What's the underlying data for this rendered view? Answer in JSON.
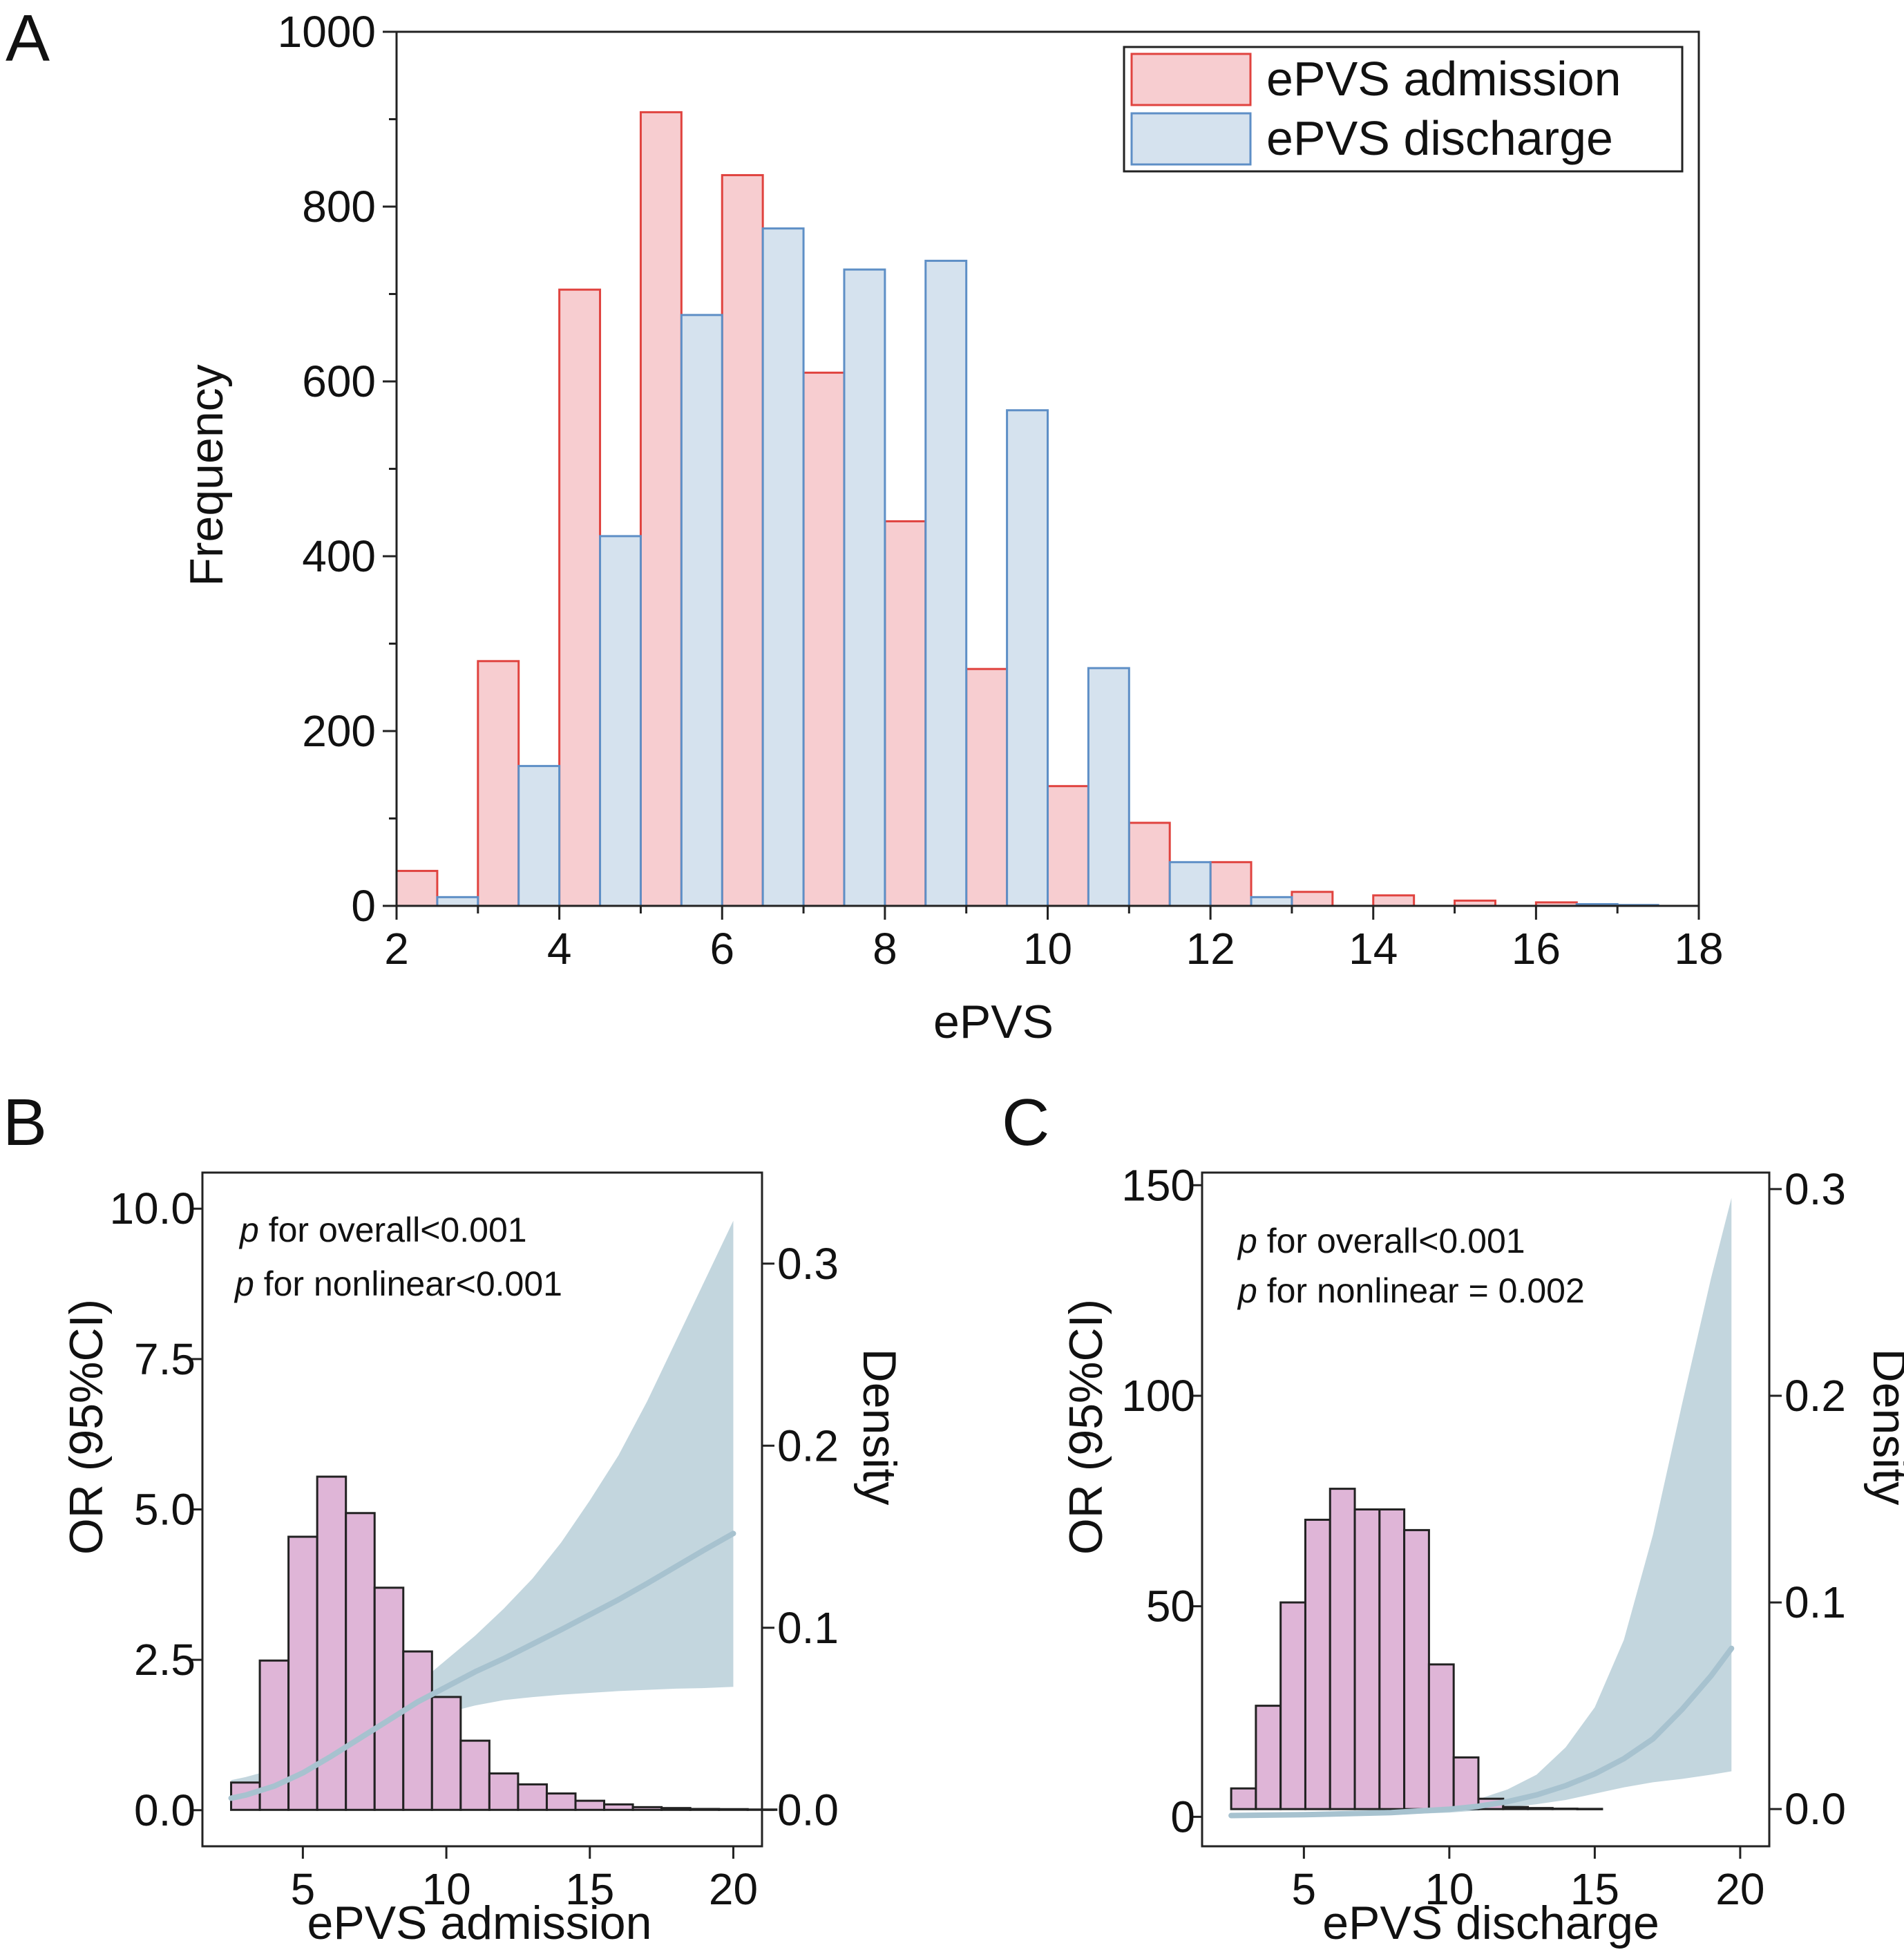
{
  "colors": {
    "admission_fill": "#f7cdd0",
    "admission_stroke": "#e0433f",
    "discharge_fill": "#d5e2ee",
    "discharge_stroke": "#5e8fc6",
    "density_fill": "#dfb5d7",
    "density_stroke": "#222222",
    "curve": "#a7c2cf",
    "band": "#b8cfd8"
  },
  "chart_data": [
    {
      "panel": "A",
      "type": "bar",
      "xlabel": "ePVS",
      "ylabel": "Frequency",
      "xlim": [
        2,
        18
      ],
      "ylim": [
        0,
        1000
      ],
      "xticks": [
        "2",
        "4",
        "6",
        "8",
        "10",
        "12",
        "14",
        "16",
        "18"
      ],
      "yticks": [
        "0",
        "200",
        "400",
        "600",
        "800",
        "1000"
      ],
      "legend": [
        "ePVS admission",
        "ePVS discharge"
      ],
      "legend_position": "top-right",
      "series": [
        {
          "name": "ePVS admission",
          "bins": [
            [
              2,
              2.5,
              40
            ],
            [
              3,
              3.5,
              280
            ],
            [
              4,
              4.5,
              705
            ],
            [
              5,
              5.5,
              908
            ],
            [
              6,
              6.5,
              836
            ],
            [
              7,
              7.5,
              610
            ],
            [
              8,
              8.5,
              440
            ],
            [
              9,
              9.5,
              271
            ],
            [
              10,
              10.5,
              137
            ],
            [
              11,
              11.5,
              95
            ],
            [
              12,
              12.5,
              50
            ],
            [
              13,
              13.5,
              16
            ],
            [
              14,
              14.5,
              12
            ],
            [
              15,
              15.5,
              6
            ],
            [
              16,
              16.5,
              4
            ]
          ]
        },
        {
          "name": "ePVS discharge",
          "bins": [
            [
              2.5,
              3,
              10
            ],
            [
              3.5,
              4,
              160
            ],
            [
              4.5,
              5,
              423
            ],
            [
              5.5,
              6,
              676
            ],
            [
              6.5,
              7,
              775
            ],
            [
              7.5,
              8,
              728
            ],
            [
              8.5,
              9,
              738
            ],
            [
              9.5,
              10,
              567
            ],
            [
              10.5,
              11,
              272
            ],
            [
              11.5,
              12,
              50
            ],
            [
              12.5,
              13,
              10
            ],
            [
              16.5,
              17,
              2
            ],
            [
              17,
              17.5,
              1
            ]
          ]
        }
      ]
    },
    {
      "panel": "B",
      "type": "line",
      "xlabel": "ePVS admission",
      "ylabel": "OR (95%CI)",
      "y2label": "Density",
      "xlim": [
        1.5,
        21
      ],
      "ylim": [
        -0.6,
        10.6
      ],
      "y2lim": [
        -0.02,
        0.35
      ],
      "xticks": [
        5,
        10,
        15,
        20
      ],
      "yticks": [
        "0.0",
        "2.5",
        "5.0",
        "7.5",
        "10.0"
      ],
      "y2ticks": [
        "0.0",
        "0.1",
        "0.2",
        "0.3"
      ],
      "annotations": [
        {
          "italic": "p",
          "text": " for overall<0.001"
        },
        {
          "italic": "p",
          "text": " for nonlinear<0.001"
        }
      ],
      "density_hist": {
        "start": 2.5,
        "width": 1,
        "values": [
          0.015,
          0.082,
          0.15,
          0.183,
          0.163,
          0.122,
          0.087,
          0.062,
          0.038,
          0.02,
          0.014,
          0.009,
          0.005,
          0.003,
          0.0015,
          0.001,
          0.0005,
          0.0004,
          0.0002
        ]
      },
      "or_curve": {
        "x": [
          2.5,
          3,
          4,
          5,
          6,
          7,
          8,
          9,
          10,
          11,
          12,
          13,
          14,
          15,
          16,
          17,
          18,
          19,
          20
        ],
        "y": [
          0.2,
          0.25,
          0.4,
          0.62,
          0.9,
          1.2,
          1.5,
          1.8,
          2.05,
          2.3,
          2.52,
          2.76,
          3.0,
          3.25,
          3.5,
          3.77,
          4.05,
          4.33,
          4.6
        ],
        "lower": [
          0.05,
          0.1,
          0.22,
          0.42,
          0.68,
          0.98,
          1.22,
          1.45,
          1.62,
          1.74,
          1.83,
          1.88,
          1.92,
          1.95,
          1.98,
          2.0,
          2.02,
          2.03,
          2.05
        ],
        "upper": [
          0.5,
          0.55,
          0.68,
          0.9,
          1.15,
          1.45,
          1.75,
          2.1,
          2.5,
          2.9,
          3.35,
          3.85,
          4.45,
          5.15,
          5.9,
          6.8,
          7.8,
          8.8,
          9.8
        ]
      }
    },
    {
      "panel": "C",
      "type": "line",
      "xlabel": "ePVS discharge",
      "ylabel": "OR (95%CI)",
      "y2label": "Density",
      "xlim": [
        1.5,
        21
      ],
      "ylim": [
        -7,
        153
      ],
      "y2lim": [
        -0.018,
        0.308
      ],
      "xticks": [
        5,
        10,
        15,
        20
      ],
      "yticks": [
        "0",
        "50",
        "100",
        "150"
      ],
      "y2ticks": [
        "0.0",
        "0.1",
        "0.2",
        "0.3"
      ],
      "annotations": [
        {
          "italic": "p",
          "text": " for overall<0.001"
        },
        {
          "italic": "p",
          "text": " for nonlinear = 0.002"
        }
      ],
      "density_hist": {
        "start": 2.5,
        "width": 0.85,
        "values": [
          0.01,
          0.05,
          0.1,
          0.14,
          0.155,
          0.145,
          0.145,
          0.135,
          0.07,
          0.025,
          0.005,
          0.001,
          0.0005,
          0.0002,
          0.0001
        ]
      },
      "or_curve": {
        "x": [
          2.5,
          5,
          8,
          10,
          11,
          12,
          13,
          14,
          15,
          16,
          17,
          18,
          19,
          19.7
        ],
        "y": [
          0.3,
          0.5,
          1.0,
          1.8,
          2.5,
          3.6,
          5.2,
          7.4,
          10.2,
          13.8,
          18.5,
          25.5,
          33.5,
          40.0
        ],
        "lower": [
          0.05,
          0.2,
          0.5,
          1.0,
          1.5,
          2.2,
          3.0,
          4.0,
          5.5,
          7.0,
          8.2,
          9.0,
          10.0,
          10.8
        ],
        "upper": [
          0.5,
          0.9,
          1.6,
          2.8,
          4.2,
          6.5,
          10.0,
          16.5,
          26.0,
          42.0,
          67.0,
          98.0,
          128.0,
          147.0
        ]
      }
    }
  ]
}
